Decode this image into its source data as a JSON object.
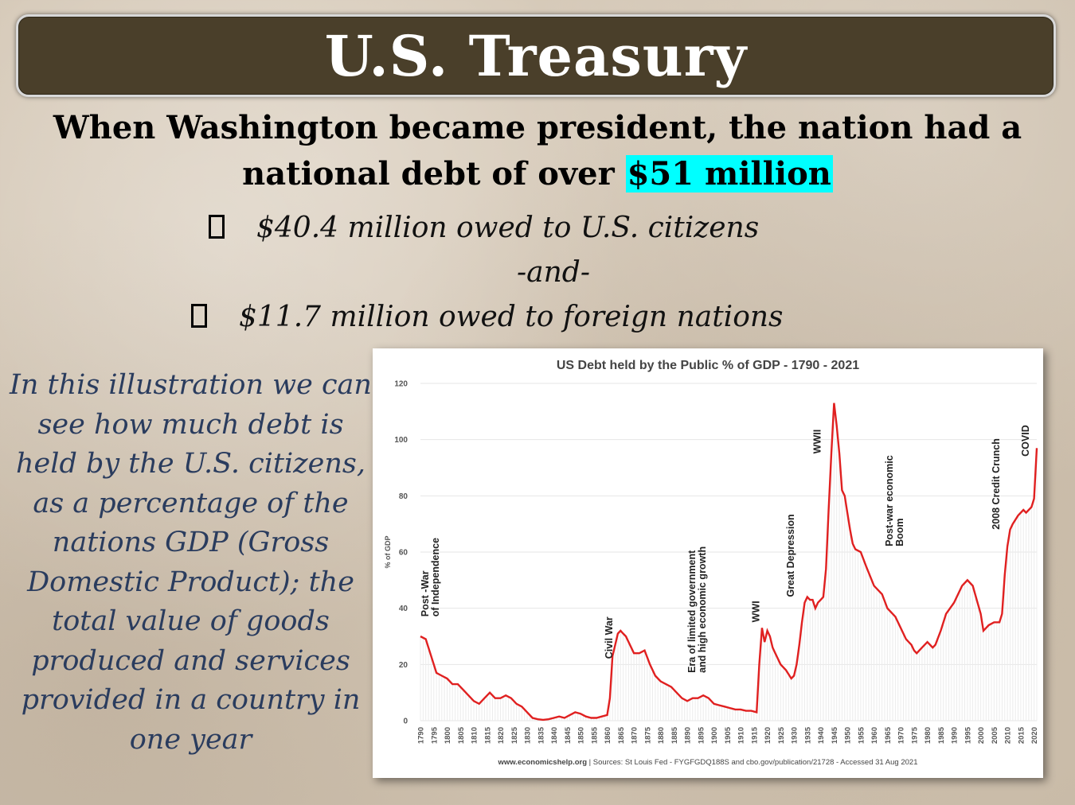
{
  "slide": {
    "title": "U.S. Treasury",
    "headline_prefix": "When Washington became president, the nation had a national debt of over ",
    "headline_highlight": "$51 million",
    "highlight_color": "#00ffff",
    "bullet_1": "$40.4 million owed to U.S. citizens",
    "connector": "-and-",
    "bullet_2": "$11.7 million owed to foreign nations",
    "side_text": "In this illustration we can see how much debt is held by the U.S. citizens, as a percentage of the nations GDP (Gross Domestic Product); the total value of goods produced and services provided in a country in one year",
    "colors": {
      "title_bar": "#4a3f2a",
      "side_text": "#2a3c5e",
      "line": "#e02020"
    }
  },
  "chart_data": {
    "type": "line",
    "title": "US Debt held by the Public % of GDP - 1790 - 2021",
    "ylabel": "% of GDP",
    "xlabel": "",
    "ylim": [
      0,
      120
    ],
    "xlim": [
      1790,
      2021
    ],
    "y_ticks": [
      "0",
      "20",
      "40",
      "60",
      "80",
      "100",
      "120"
    ],
    "x_ticks": [
      "1790",
      "1795",
      "1800",
      "1805",
      "1810",
      "1815",
      "1820",
      "1825",
      "1830",
      "1835",
      "1840",
      "1845",
      "1850",
      "1855",
      "1860",
      "1865",
      "1870",
      "1875",
      "1880",
      "1885",
      "1890",
      "1895",
      "1900",
      "1905",
      "1910",
      "1915",
      "1920",
      "1925",
      "1930",
      "1935",
      "1940",
      "1945",
      "1950",
      "1955",
      "1960",
      "1965",
      "1970",
      "1975",
      "1980",
      "1985",
      "1990",
      "1995",
      "2000",
      "2005",
      "2010",
      "2015",
      "2020"
    ],
    "grid": true,
    "source_site": "www.economicshelp.org",
    "source_text": "Sources: St Louis Fed - FYGFGDQ188S and cbo.gov/publication/21728 - Accessed 31 Aug 2021",
    "annotations": [
      {
        "label": "Post -War of Independence",
        "year": 1793,
        "value": 37
      },
      {
        "label": "Civil War",
        "year": 1862,
        "value": 22
      },
      {
        "label": "Era of limited government and high economic growth",
        "year": 1893,
        "value": 17
      },
      {
        "label": "WWI",
        "year": 1917,
        "value": 35
      },
      {
        "label": "Great Depression",
        "year": 1930,
        "value": 44
      },
      {
        "label": "WWII",
        "year": 1940,
        "value": 95
      },
      {
        "label": "Post-war economic Boom",
        "year": 1967,
        "value": 62
      },
      {
        "label": "2008 Credit Crunch",
        "year": 2007,
        "value": 68
      },
      {
        "label": "COVID",
        "year": 2018,
        "value": 94
      }
    ],
    "series": [
      {
        "color": "#e02020",
        "x": [
          1790,
          1792,
          1794,
          1796,
          1798,
          1800,
          1802,
          1804,
          1806,
          1808,
          1810,
          1812,
          1814,
          1816,
          1818,
          1820,
          1822,
          1824,
          1826,
          1828,
          1830,
          1832,
          1834,
          1836,
          1838,
          1840,
          1842,
          1844,
          1846,
          1848,
          1850,
          1852,
          1854,
          1856,
          1858,
          1860,
          1861,
          1862,
          1863,
          1864,
          1865,
          1866,
          1867,
          1868,
          1870,
          1872,
          1874,
          1876,
          1878,
          1880,
          1882,
          1884,
          1886,
          1888,
          1890,
          1892,
          1894,
          1896,
          1898,
          1900,
          1902,
          1904,
          1906,
          1908,
          1910,
          1912,
          1914,
          1916,
          1917,
          1918,
          1919,
          1920,
          1921,
          1922,
          1923,
          1925,
          1927,
          1929,
          1930,
          1931,
          1932,
          1933,
          1934,
          1935,
          1936,
          1937,
          1938,
          1939,
          1940,
          1941,
          1942,
          1943,
          1944,
          1945,
          1946,
          1947,
          1948,
          1949,
          1950,
          1951,
          1952,
          1953,
          1955,
          1957,
          1960,
          1963,
          1965,
          1968,
          1970,
          1972,
          1974,
          1975,
          1976,
          1978,
          1980,
          1982,
          1983,
          1985,
          1987,
          1990,
          1993,
          1995,
          1997,
          2000,
          2001,
          2003,
          2005,
          2007,
          2008,
          2009,
          2010,
          2011,
          2012,
          2014,
          2016,
          2017,
          2019,
          2020,
          2021
        ],
        "y": [
          30,
          29,
          23,
          17,
          16,
          15,
          13,
          13,
          11,
          9,
          7,
          6,
          8,
          10,
          8,
          8,
          9,
          8,
          6,
          5,
          3,
          1,
          0.5,
          0.3,
          0.5,
          1,
          1.5,
          1,
          2,
          3,
          2.5,
          1.5,
          1,
          1,
          1.5,
          2,
          8,
          23,
          27,
          31,
          32,
          31,
          30,
          28,
          24,
          24,
          25,
          20,
          16,
          14,
          13,
          12,
          10,
          8,
          7,
          8,
          8,
          9,
          8,
          6,
          5.5,
          5,
          4.5,
          4,
          4,
          3.5,
          3.5,
          3,
          20,
          33,
          28,
          32,
          30,
          26,
          24,
          20,
          18,
          15,
          16,
          20,
          27,
          35,
          42,
          44,
          43,
          43,
          40,
          42,
          43,
          44,
          54,
          75,
          95,
          113,
          105,
          95,
          82,
          80,
          74,
          68,
          63,
          61,
          60,
          55,
          48,
          45,
          40,
          37,
          33,
          29,
          27,
          25,
          24,
          26,
          28,
          26,
          27,
          32,
          38,
          42,
          48,
          50,
          48,
          38,
          32,
          34,
          35,
          35,
          38,
          52,
          62,
          68,
          70,
          73,
          75,
          74,
          76,
          79,
          97
        ]
      }
    ]
  }
}
